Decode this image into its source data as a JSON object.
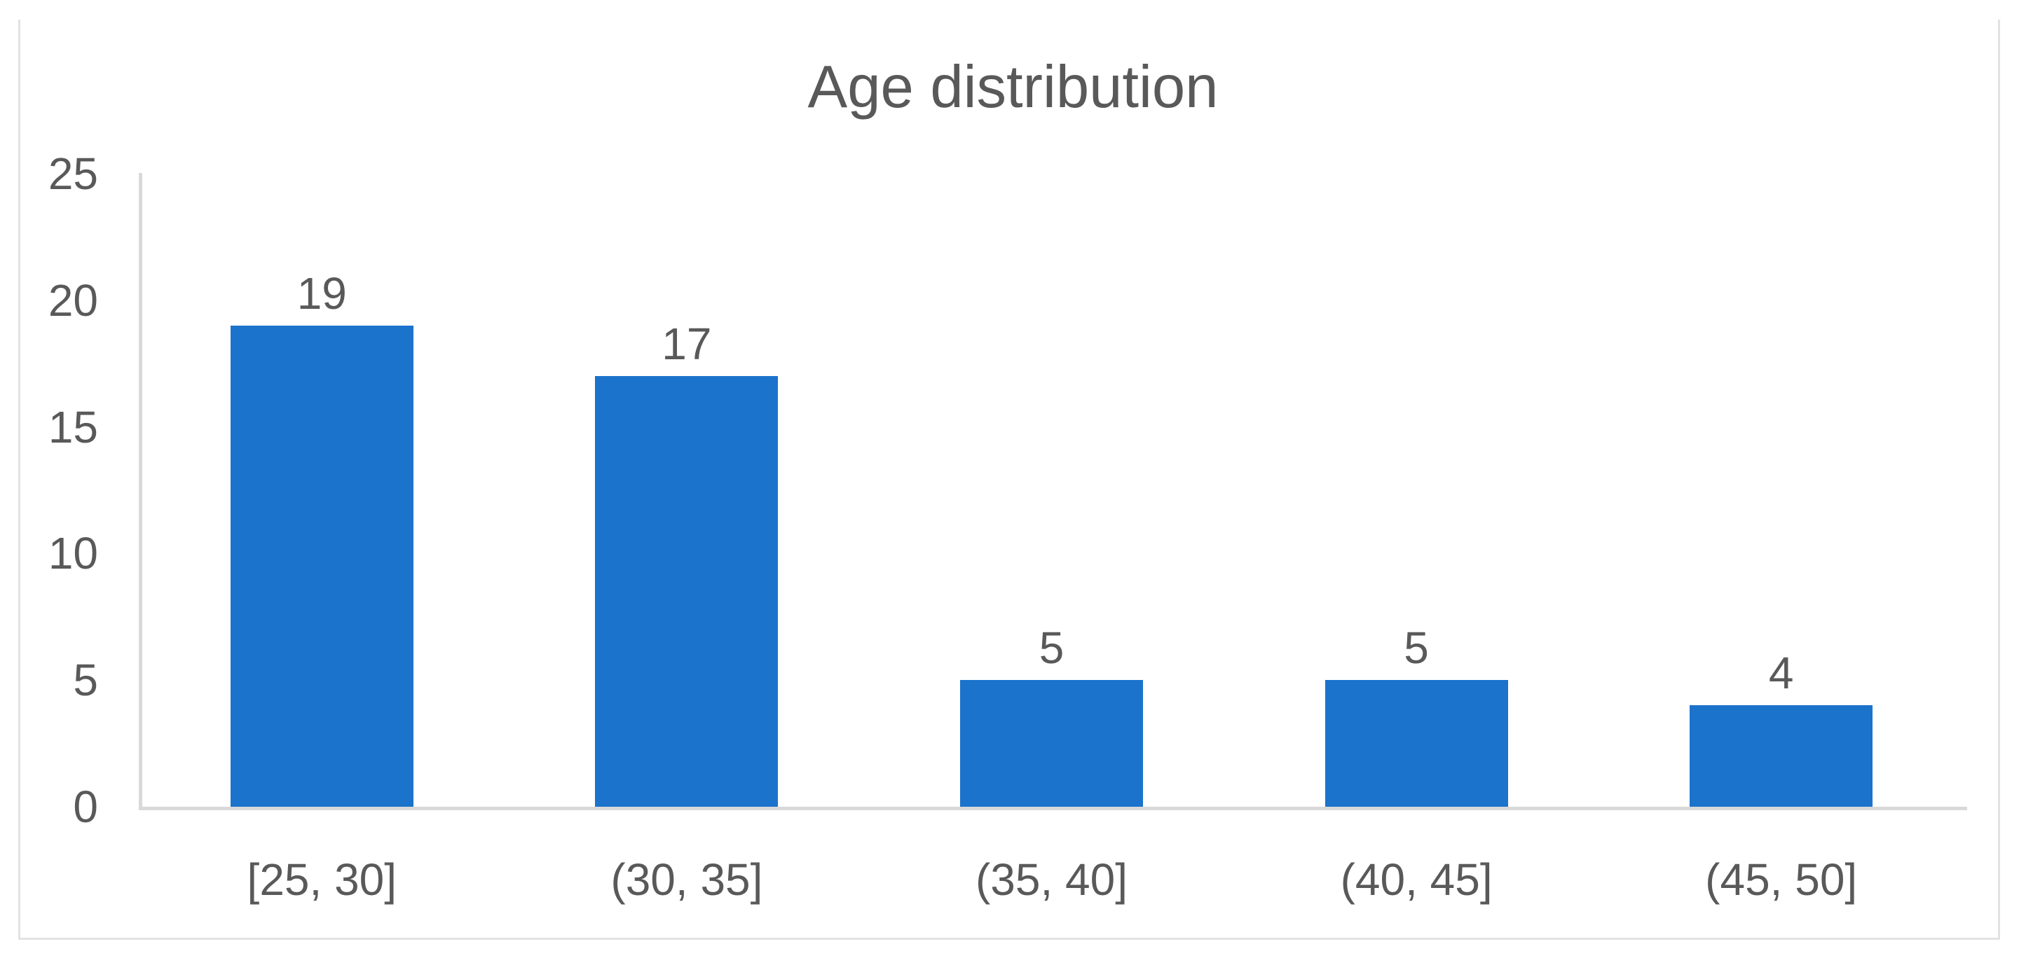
{
  "chart_data": {
    "type": "bar",
    "title": "Age distribution",
    "categories": [
      "[25, 30]",
      "(30, 35]",
      "(35, 40]",
      "(40, 45]",
      "(45, 50]"
    ],
    "values": [
      19,
      17,
      5,
      5,
      4
    ],
    "yticks": [
      0,
      5,
      10,
      15,
      20,
      25
    ],
    "ylim": [
      0,
      25
    ],
    "xlabel": "",
    "ylabel": "",
    "grid": "off",
    "legend": "none",
    "colors": {
      "bar": "#1B73CB",
      "text": "#595959",
      "axis": "#D9D9D9",
      "border": "#E2E2E2"
    }
  }
}
